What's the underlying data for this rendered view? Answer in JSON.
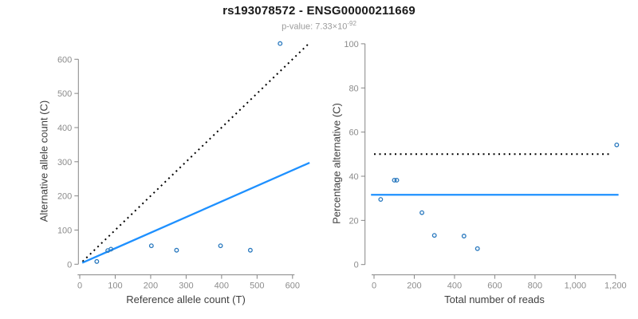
{
  "header": {
    "title": "rs193078572 - ENSG00000211669",
    "pvalue_base": "p-value: 7.33×10",
    "pvalue_exponent": "-92"
  },
  "colors": {
    "points": "#2878BE",
    "fit_line": "#1E90FF",
    "dotted_line": "#000000",
    "axis": "#858585",
    "tick_text": "#8c8c8c",
    "axis_title": "#3f3f3f",
    "subtitle": "#9b9b9b"
  },
  "chart_data": [
    {
      "type": "scatter",
      "xlabel": "Reference allele count (T)",
      "ylabel": "Alternative allele count (C)",
      "xlim": [
        0,
        650
      ],
      "ylim": [
        0,
        660
      ],
      "x_ticks": [
        0,
        100,
        200,
        300,
        400,
        500,
        600
      ],
      "x_tick_labels": [
        "0",
        "100",
        "200",
        "300",
        "400",
        "500",
        "600"
      ],
      "y_ticks": [
        0,
        100,
        200,
        300,
        400,
        500,
        600
      ],
      "y_tick_labels": [
        "0",
        "100",
        "200",
        "300",
        "400",
        "500",
        "600"
      ],
      "points": [
        [
          48,
          8
        ],
        [
          79,
          40
        ],
        [
          88,
          44
        ],
        [
          202,
          54
        ],
        [
          273,
          41
        ],
        [
          397,
          54
        ],
        [
          481,
          41
        ],
        [
          565,
          646
        ]
      ],
      "identity_line": {
        "style": "dotted",
        "desc": "y = x",
        "from": [
          8,
          8
        ],
        "to": [
          643,
          643
        ]
      },
      "fit_line": {
        "style": "solid",
        "desc": "y ≈ 0.46x",
        "from": [
          7,
          4
        ],
        "to": [
          648,
          297
        ]
      },
      "grid": false,
      "legend": null
    },
    {
      "type": "scatter",
      "xlabel": "Total number of reads",
      "ylabel": "Percentage alternative (C)",
      "xlim": [
        0,
        1250
      ],
      "ylim": [
        0,
        100
      ],
      "x_ticks": [
        0,
        200,
        400,
        600,
        800,
        1000,
        1200
      ],
      "x_tick_labels": [
        "0",
        "200",
        "400",
        "600",
        "800",
        "1,000",
        "1,200"
      ],
      "y_ticks": [
        0,
        20,
        40,
        60,
        80,
        100
      ],
      "y_tick_labels": [
        "0",
        "20",
        "40",
        "60",
        "80",
        "100"
      ],
      "points": [
        [
          33,
          29.5
        ],
        [
          101,
          38.2
        ],
        [
          113,
          38.2
        ],
        [
          238,
          23.5
        ],
        [
          300,
          13.2
        ],
        [
          447,
          12.9
        ],
        [
          514,
          7.2
        ],
        [
          1206,
          54.2
        ]
      ],
      "identity_line": {
        "style": "dotted",
        "desc": "50% reference",
        "from": [
          0,
          50
        ],
        "to": [
          1175,
          50
        ]
      },
      "fit_line": {
        "style": "solid",
        "desc": "mean ≈ 31.6%",
        "from": [
          -15,
          31.6
        ],
        "to": [
          1215,
          31.6
        ]
      },
      "grid": false,
      "legend": null
    }
  ]
}
